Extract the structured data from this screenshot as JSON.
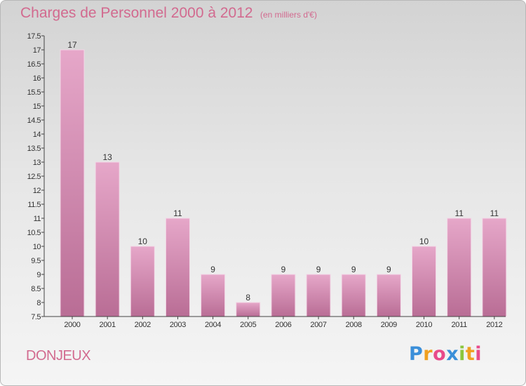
{
  "title": "Charges de Personnel 2000 à 2012",
  "subtitle": "(en milliers d'€)",
  "commune": "DONJEUX",
  "logo": {
    "text": "Proxiti",
    "letters": [
      "P",
      "r",
      "o",
      "x",
      "i",
      "t",
      "i"
    ],
    "colors": [
      "#3b8fd9",
      "#f0a020",
      "#e84a8a",
      "#3b8fd9",
      "#8cc63e",
      "#f0a020",
      "#e84a8a"
    ]
  },
  "colors": {
    "bar": "#d98fb8",
    "bar_dark": "#b5628f",
    "accent": "#d26a8f",
    "axis": "#333333"
  },
  "chart_data": {
    "type": "bar",
    "title": "Charges de Personnel 2000 à 2012",
    "subtitle": "(en milliers d'€)",
    "categories": [
      "2000",
      "2001",
      "2002",
      "2003",
      "2004",
      "2005",
      "2006",
      "2007",
      "2008",
      "2009",
      "2010",
      "2011",
      "2012"
    ],
    "values": [
      17,
      13,
      10,
      11,
      9,
      8,
      9,
      9,
      9,
      9,
      10,
      11,
      11
    ],
    "value_labels": [
      "17",
      "13",
      "10",
      "11",
      "9",
      "8",
      "9",
      "9",
      "9",
      "9",
      "10",
      "11",
      "11"
    ],
    "ylim": [
      7.5,
      17.5
    ],
    "yticks": [
      7.5,
      8,
      8.5,
      9,
      9.5,
      10,
      10.5,
      11,
      11.5,
      12,
      12.5,
      13,
      13.5,
      14,
      14.5,
      15,
      15.5,
      16,
      16.5,
      17,
      17.5
    ],
    "ytick_labels": [
      "7.5",
      "8",
      "8.5",
      "9",
      "9.5",
      "10",
      "10.5",
      "11",
      "11.5",
      "12",
      "12.5",
      "13",
      "13.5",
      "14",
      "14.5",
      "15",
      "15.5",
      "16",
      "16.5",
      "17",
      "17.5"
    ],
    "grid": false,
    "xlabel": "",
    "ylabel": ""
  }
}
